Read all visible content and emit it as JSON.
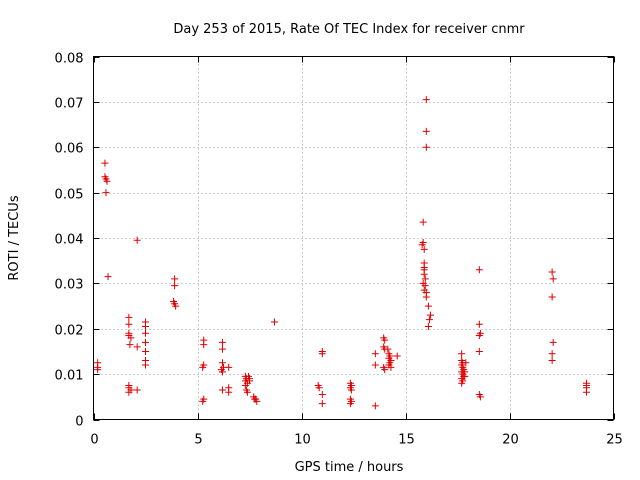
{
  "colors": {
    "series": "#e00000",
    "axis": "#000000",
    "grid": "#a0a0a0"
  },
  "chart_data": {
    "type": "scatter",
    "title": "Day 253 of 2015, Rate Of TEC Index for receiver cnmr",
    "xlabel": "GPS time / hours",
    "ylabel": "ROTI / TECUs",
    "xlim": [
      0,
      25
    ],
    "ylim": [
      0,
      0.08
    ],
    "grid": true,
    "marker": "plus",
    "xticks": [
      0,
      5,
      10,
      15,
      20,
      25
    ],
    "xtick_labels": [
      "0",
      "5",
      "10",
      "15",
      "20",
      "25"
    ],
    "yticks": [
      0,
      0.01,
      0.02,
      0.03,
      0.04,
      0.05,
      0.06,
      0.07,
      0.08
    ],
    "ytick_labels": [
      "0",
      "0.01",
      "0.02",
      "0.03",
      "0.04",
      "0.05",
      "0.06",
      "0.07",
      "0.08"
    ],
    "series": [
      {
        "name": "cnmr",
        "points": [
          [
            0.2,
            0.0125
          ],
          [
            0.2,
            0.0115
          ],
          [
            0.2,
            0.011
          ],
          [
            0.55,
            0.0565
          ],
          [
            0.55,
            0.0535
          ],
          [
            0.6,
            0.053
          ],
          [
            0.65,
            0.0525
          ],
          [
            0.6,
            0.05
          ],
          [
            0.7,
            0.0315
          ],
          [
            1.7,
            0.0225
          ],
          [
            1.7,
            0.021
          ],
          [
            1.7,
            0.019
          ],
          [
            1.7,
            0.0185
          ],
          [
            1.8,
            0.018
          ],
          [
            1.75,
            0.0165
          ],
          [
            1.7,
            0.0075
          ],
          [
            1.7,
            0.007
          ],
          [
            1.8,
            0.0065
          ],
          [
            1.7,
            0.006
          ],
          [
            2.1,
            0.0395
          ],
          [
            2.1,
            0.016
          ],
          [
            2.1,
            0.0065
          ],
          [
            2.5,
            0.0215
          ],
          [
            2.5,
            0.0205
          ],
          [
            2.5,
            0.019
          ],
          [
            2.5,
            0.017
          ],
          [
            2.5,
            0.015
          ],
          [
            2.5,
            0.013
          ],
          [
            2.5,
            0.012
          ],
          [
            3.9,
            0.031
          ],
          [
            3.9,
            0.0295
          ],
          [
            3.85,
            0.026
          ],
          [
            3.9,
            0.0255
          ],
          [
            3.95,
            0.025
          ],
          [
            5.3,
            0.0175
          ],
          [
            5.3,
            0.0165
          ],
          [
            5.3,
            0.012
          ],
          [
            5.25,
            0.0115
          ],
          [
            5.3,
            0.0045
          ],
          [
            5.25,
            0.004
          ],
          [
            6.2,
            0.017
          ],
          [
            6.2,
            0.0155
          ],
          [
            6.2,
            0.0125
          ],
          [
            6.15,
            0.011
          ],
          [
            6.2,
            0.0105
          ],
          [
            6.25,
            0.0115
          ],
          [
            6.2,
            0.0065
          ],
          [
            6.5,
            0.0115
          ],
          [
            6.5,
            0.007
          ],
          [
            6.5,
            0.006
          ],
          [
            7.3,
            0.0095
          ],
          [
            7.35,
            0.009
          ],
          [
            7.3,
            0.0085
          ],
          [
            7.4,
            0.008
          ],
          [
            7.3,
            0.0075
          ],
          [
            7.35,
            0.0065
          ],
          [
            7.4,
            0.006
          ],
          [
            7.45,
            0.0095
          ],
          [
            7.5,
            0.009
          ],
          [
            7.5,
            0.0085
          ],
          [
            7.7,
            0.005
          ],
          [
            7.75,
            0.0045
          ],
          [
            7.8,
            0.0045
          ],
          [
            7.85,
            0.004
          ],
          [
            8.7,
            0.0215
          ],
          [
            10.8,
            0.0075
          ],
          [
            10.85,
            0.007
          ],
          [
            11.0,
            0.015
          ],
          [
            11.0,
            0.0145
          ],
          [
            11.0,
            0.0055
          ],
          [
            11.0,
            0.0035
          ],
          [
            12.35,
            0.008
          ],
          [
            12.4,
            0.0075
          ],
          [
            12.35,
            0.007
          ],
          [
            12.4,
            0.0065
          ],
          [
            12.35,
            0.0045
          ],
          [
            12.4,
            0.004
          ],
          [
            12.35,
            0.0035
          ],
          [
            13.55,
            0.0145
          ],
          [
            13.55,
            0.012
          ],
          [
            13.55,
            0.003
          ],
          [
            13.95,
            0.018
          ],
          [
            14.0,
            0.0175
          ],
          [
            13.95,
            0.016
          ],
          [
            14.0,
            0.0155
          ],
          [
            13.95,
            0.0115
          ],
          [
            14.0,
            0.011
          ],
          [
            14.2,
            0.0145
          ],
          [
            14.25,
            0.014
          ],
          [
            14.2,
            0.0135
          ],
          [
            14.3,
            0.013
          ],
          [
            14.25,
            0.0125
          ],
          [
            14.2,
            0.012
          ],
          [
            14.3,
            0.0115
          ],
          [
            14.15,
            0.0155
          ],
          [
            14.6,
            0.014
          ],
          [
            15.85,
            0.0435
          ],
          [
            15.85,
            0.039
          ],
          [
            15.8,
            0.0385
          ],
          [
            15.9,
            0.0375
          ],
          [
            15.9,
            0.0345
          ],
          [
            15.9,
            0.0335
          ],
          [
            15.9,
            0.033
          ],
          [
            15.9,
            0.032
          ],
          [
            15.95,
            0.031
          ],
          [
            15.85,
            0.03
          ],
          [
            15.95,
            0.0295
          ],
          [
            15.9,
            0.0285
          ],
          [
            16.0,
            0.028
          ],
          [
            16.0,
            0.027
          ],
          [
            16.0,
            0.0705
          ],
          [
            16.0,
            0.0635
          ],
          [
            16.0,
            0.06
          ],
          [
            16.1,
            0.025
          ],
          [
            16.2,
            0.023
          ],
          [
            16.15,
            0.022
          ],
          [
            16.1,
            0.0205
          ],
          [
            17.7,
            0.0145
          ],
          [
            17.7,
            0.013
          ],
          [
            17.75,
            0.0125
          ],
          [
            17.7,
            0.012
          ],
          [
            17.75,
            0.0115
          ],
          [
            17.8,
            0.011
          ],
          [
            17.7,
            0.0105
          ],
          [
            17.75,
            0.01
          ],
          [
            17.8,
            0.0095
          ],
          [
            17.7,
            0.009
          ],
          [
            17.75,
            0.0085
          ],
          [
            17.7,
            0.008
          ],
          [
            17.85,
            0.0105
          ],
          [
            17.85,
            0.0095
          ],
          [
            17.9,
            0.0125
          ],
          [
            18.55,
            0.033
          ],
          [
            18.55,
            0.021
          ],
          [
            18.6,
            0.019
          ],
          [
            18.55,
            0.0185
          ],
          [
            18.55,
            0.015
          ],
          [
            18.55,
            0.0055
          ],
          [
            18.6,
            0.005
          ],
          [
            22.05,
            0.0325
          ],
          [
            22.1,
            0.031
          ],
          [
            22.05,
            0.027
          ],
          [
            22.1,
            0.017
          ],
          [
            22.05,
            0.0145
          ],
          [
            22.05,
            0.013
          ],
          [
            23.7,
            0.008
          ],
          [
            23.7,
            0.0075
          ],
          [
            23.7,
            0.007
          ],
          [
            23.7,
            0.006
          ]
        ]
      }
    ]
  }
}
